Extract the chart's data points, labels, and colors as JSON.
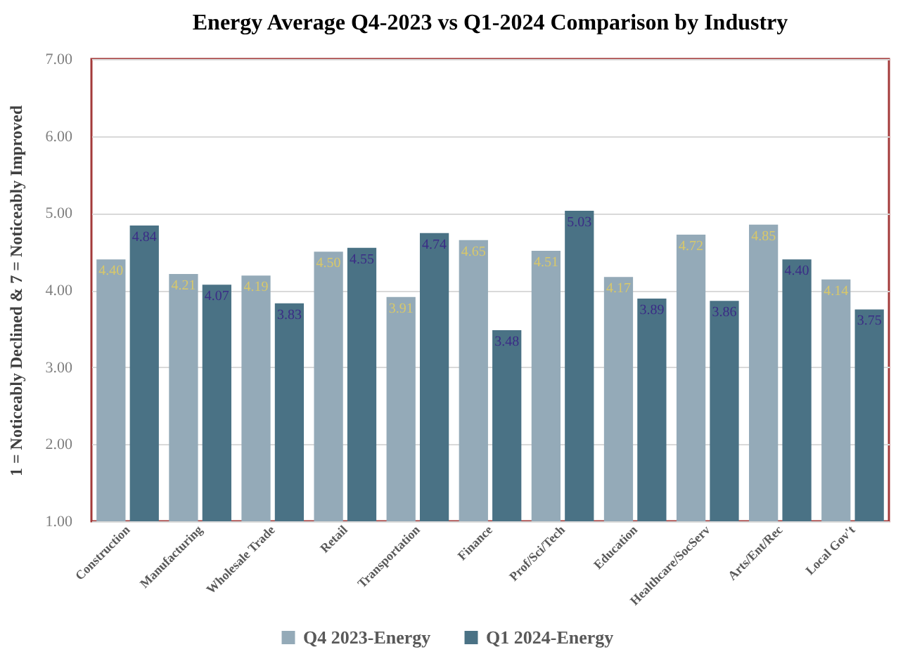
{
  "chart_data": {
    "type": "bar",
    "title": "Energy Average Q4-2023 vs Q1-2024 Comparison by Industry",
    "ylabel": "1 = Noticeably Declined & 7 = Noticeably  Improved",
    "categories": [
      "Construction",
      "Manufacturing",
      "Wholesale Trade",
      "Retail",
      "Transportation",
      "Finance",
      "Prof/Sci/Tech",
      "Education",
      "Healthcare/SocServ",
      "Arts/Ent/Rec",
      "Local Gov't"
    ],
    "series": [
      {
        "name": "Q4 2023-Energy",
        "color": "#94aab8",
        "values": [
          4.4,
          4.21,
          4.19,
          4.5,
          3.91,
          4.65,
          4.51,
          4.17,
          4.72,
          4.85,
          4.14
        ],
        "value_labels": [
          "4.40",
          "4.21",
          "4.19",
          "4.50",
          "3.91",
          "4.65",
          "4.51",
          "4.17",
          "4.72",
          "4.85",
          "4.14"
        ]
      },
      {
        "name": "Q1 2024-Energy",
        "color": "#4a7285",
        "values": [
          4.84,
          4.07,
          3.83,
          4.55,
          4.74,
          3.48,
          5.03,
          3.89,
          3.86,
          4.4,
          3.75
        ],
        "value_labels": [
          "4.84",
          "4.07",
          "3.83",
          "4.55",
          "4.74",
          "3.48",
          "5.03",
          "3.89",
          "3.86",
          "4.40",
          "3.75"
        ]
      }
    ],
    "ylim": [
      1,
      7
    ],
    "yticks": [
      {
        "value": 1,
        "label": "1.00"
      },
      {
        "value": 2,
        "label": "2.00"
      },
      {
        "value": 3,
        "label": "3.00"
      },
      {
        "value": 4,
        "label": "4.00"
      },
      {
        "value": 5,
        "label": "5.00"
      },
      {
        "value": 6,
        "label": "6.00"
      },
      {
        "value": 7,
        "label": "7.00"
      }
    ],
    "grid": "y",
    "legend": "bottom"
  }
}
